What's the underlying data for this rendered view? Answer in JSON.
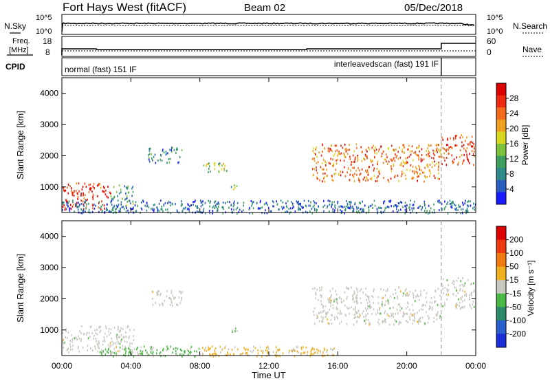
{
  "header": {
    "station": "Fort Hays West (fitACF)",
    "beam": "Beam 02",
    "date": "05/Dec/2018"
  },
  "status_panels": {
    "nsky_label": "N.Sky",
    "nsearch_label": "N.Search",
    "noise_ticks": [
      "10^5",
      "10^0"
    ],
    "freq_label_1": "Freq.",
    "freq_label_2": "[MHz]",
    "freq_ticks": [
      "18",
      "8"
    ],
    "nave_label": "Nave",
    "nave_ticks": [
      "60",
      "0"
    ],
    "cpid_label": "CPID",
    "cpid_segments": [
      {
        "name": "normal (fast) 151 IF",
        "start_h": 0,
        "end_h": 22.0
      },
      {
        "name": "interleavedscan (fast) 191 IF",
        "start_h": 22.0,
        "end_h": 24
      }
    ]
  },
  "time_axis": {
    "label": "Time UT",
    "ticks": [
      "00:00",
      "04:00",
      "08:00",
      "12:00",
      "16:00",
      "20:00",
      "00:00"
    ]
  },
  "range_axis": {
    "label": "Slant Range [km]",
    "ticks": [
      "1000",
      "2000",
      "3000",
      "4000"
    ]
  },
  "power_scale": {
    "label": "Power [dB]",
    "ticks": [
      "4",
      "8",
      "12",
      "16",
      "20",
      "24",
      "28"
    ],
    "colors": [
      "#1a1aff",
      "#2b5fbf",
      "#2f8a8a",
      "#3e9e5e",
      "#7cc23a",
      "#d8d820",
      "#f0a020",
      "#f26a1a",
      "#ee2a10",
      "#dd0000"
    ]
  },
  "velocity_scale": {
    "label": "Velocity [m s⁻¹]",
    "ticks": [
      "200",
      "100",
      "50",
      "15",
      "-15",
      "-50",
      "-100",
      "-200"
    ],
    "colors": [
      "#1a2fd9",
      "#2a5fd0",
      "#2a8a6a",
      "#4ab844",
      "#c8c8c0",
      "#f0b020",
      "#f07a10",
      "#ee3a10",
      "#dd0000"
    ]
  },
  "chart_data": [
    {
      "type": "heatmap",
      "title": "Power",
      "xlabel": "Time UT",
      "ylabel": "Slant Range [km]",
      "xlim": [
        0,
        24
      ],
      "ylim": [
        180,
        4500
      ],
      "colorbar_label": "Power [dB]",
      "colorbar_range": [
        0,
        30
      ],
      "regions": [
        {
          "t0": 0.0,
          "t1": 2.8,
          "r0": 300,
          "r1": 1150,
          "value": 26
        },
        {
          "t0": 2.8,
          "t1": 4.2,
          "r0": 300,
          "r1": 1100,
          "value": 10
        },
        {
          "t0": 5.0,
          "t1": 7.0,
          "r0": 1800,
          "r1": 2300,
          "value": 8
        },
        {
          "t0": 8.2,
          "t1": 9.6,
          "r0": 1500,
          "r1": 1800,
          "value": 14
        },
        {
          "t0": 9.8,
          "t1": 10.3,
          "r0": 950,
          "r1": 1100,
          "value": 12
        },
        {
          "t0": 14.5,
          "t1": 22.0,
          "r0": 1200,
          "r1": 2400,
          "value": 22
        },
        {
          "t0": 22.0,
          "t1": 23.9,
          "r0": 1700,
          "r1": 2700,
          "value": 24
        },
        {
          "t0": 0.0,
          "t1": 24.0,
          "r0": 180,
          "r1": 600,
          "value": 6
        }
      ]
    },
    {
      "type": "heatmap",
      "title": "Velocity",
      "xlabel": "Time UT",
      "ylabel": "Slant Range [km]",
      "xlim": [
        0,
        24
      ],
      "ylim": [
        180,
        4500
      ],
      "colorbar_label": "Velocity [m s⁻¹]",
      "colorbar_range": [
        -250,
        250
      ],
      "regions": [
        {
          "t0": 0.0,
          "t1": 4.2,
          "r0": 300,
          "r1": 1150,
          "value": 0
        },
        {
          "t0": 2.0,
          "t1": 8.0,
          "r0": 180,
          "r1": 500,
          "value": -40
        },
        {
          "t0": 5.0,
          "t1": 7.0,
          "r0": 1800,
          "r1": 2300,
          "value": 0
        },
        {
          "t0": 9.8,
          "t1": 10.3,
          "r0": 950,
          "r1": 1100,
          "value": -40
        },
        {
          "t0": 8.0,
          "t1": 16.0,
          "r0": 180,
          "r1": 500,
          "value": 40
        },
        {
          "t0": 14.5,
          "t1": 22.0,
          "r0": 1200,
          "r1": 2400,
          "value": 0
        },
        {
          "t0": 22.0,
          "t1": 23.9,
          "r0": 1700,
          "r1": 2700,
          "value": 0
        }
      ]
    }
  ]
}
